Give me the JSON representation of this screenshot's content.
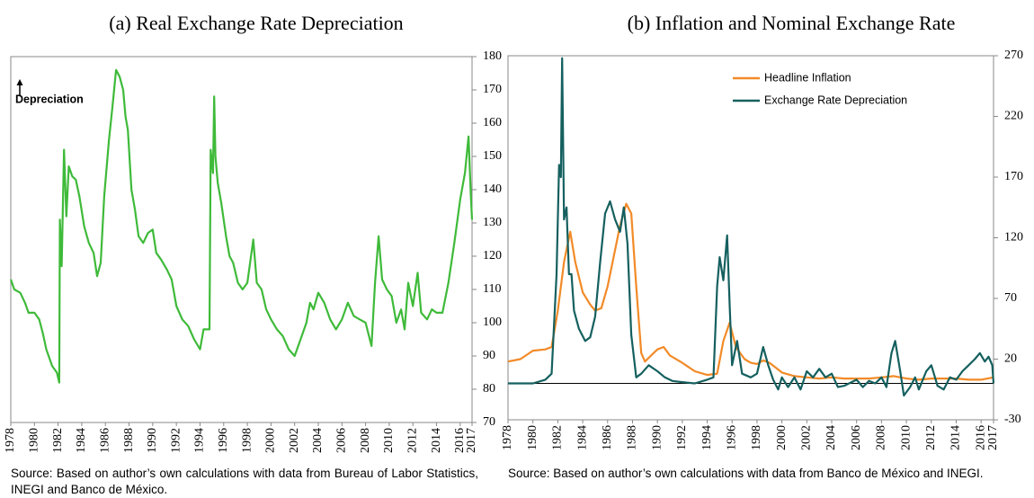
{
  "chart_data": [
    {
      "type": "line",
      "title": "(a) Real Exchange Rate Depreciation",
      "annotation": "Depreciation",
      "note": "Source: Based on author’s own calculations with data from Bureau of Labor Statistics, INEGI and Banco de México.",
      "color": "#3fba3a",
      "x": [
        1978.0,
        1978.3,
        1978.8,
        1979.2,
        1979.5,
        1980.0,
        1980.4,
        1980.7,
        1981.0,
        1981.5,
        1981.9,
        1982.1,
        1982.15,
        1982.3,
        1982.5,
        1982.7,
        1982.9,
        1983.2,
        1983.5,
        1983.8,
        1984.2,
        1984.6,
        1985.0,
        1985.3,
        1985.6,
        1985.9,
        1986.3,
        1986.6,
        1986.9,
        1987.2,
        1987.5,
        1987.7,
        1987.9,
        1988.2,
        1988.5,
        1988.8,
        1989.2,
        1989.6,
        1990.0,
        1990.3,
        1990.7,
        1991.2,
        1991.6,
        1992.0,
        1992.5,
        1993.0,
        1993.5,
        1994.0,
        1994.3,
        1994.8,
        1994.9,
        1995.1,
        1995.2,
        1995.3,
        1995.5,
        1995.8,
        1996.2,
        1996.5,
        1996.8,
        1997.2,
        1997.6,
        1998.0,
        1998.5,
        1998.8,
        1999.2,
        1999.6,
        2000.0,
        2000.5,
        2001.0,
        2001.5,
        2002.0,
        2002.5,
        2003.0,
        2003.3,
        2003.6,
        2004.0,
        2004.5,
        2005.0,
        2005.5,
        2006.0,
        2006.5,
        2007.0,
        2007.5,
        2008.0,
        2008.5,
        2008.8,
        2009.1,
        2009.4,
        2009.8,
        2010.2,
        2010.6,
        2011.0,
        2011.3,
        2011.6,
        2012.0,
        2012.4,
        2012.7,
        2013.2,
        2013.6,
        2014.0,
        2014.5,
        2015.0,
        2015.5,
        2016.0,
        2016.4,
        2016.7,
        2016.9,
        2017.0
      ],
      "values": [
        113,
        110,
        109,
        106,
        103,
        103,
        101,
        97,
        92,
        87,
        85,
        82,
        131,
        117,
        152,
        132,
        147,
        144,
        143,
        138,
        129,
        124,
        121,
        114,
        118,
        138,
        155,
        165,
        176,
        174,
        170,
        162,
        158,
        140,
        134,
        126,
        124,
        127,
        128,
        121,
        119,
        116,
        113,
        105,
        101,
        99,
        95,
        92,
        98,
        98,
        152,
        145,
        168,
        150,
        142,
        136,
        126,
        120,
        118,
        112,
        110,
        112,
        125,
        112,
        110,
        104,
        101,
        98,
        96,
        92,
        90,
        95,
        100,
        106,
        104,
        109,
        106,
        101,
        98,
        101,
        106,
        102,
        101,
        100,
        93,
        112,
        126,
        113,
        110,
        108,
        100,
        104,
        98,
        112,
        105,
        115,
        103,
        101,
        104,
        103,
        103,
        112,
        124,
        137,
        145,
        156,
        138,
        131
      ],
      "xlim": [
        1978,
        2017
      ],
      "xticks": [
        1978,
        1980,
        1982,
        1984,
        1986,
        1988,
        1990,
        1992,
        1994,
        1996,
        1998,
        2000,
        2002,
        2004,
        2006,
        2008,
        2010,
        2012,
        2014,
        2016,
        2017
      ],
      "ylim": [
        70,
        180
      ],
      "yticks": [
        70,
        80,
        90,
        100,
        110,
        120,
        130,
        140,
        150,
        160,
        170,
        180
      ]
    },
    {
      "type": "line",
      "title": "(b) Inflation and Nominal Exchange Rate",
      "note": "Source: Based on author’s own calculations with data from Banco de México and INEGI.",
      "legend": "top",
      "series": [
        {
          "name": "Headline Inflation",
          "color": "#f28a27",
          "x": [
            1978,
            1979,
            1980,
            1981,
            1981.5,
            1982,
            1982.5,
            1983,
            1983.4,
            1984,
            1984.6,
            1985,
            1985.5,
            1986,
            1986.5,
            1987,
            1987.5,
            1987.9,
            1988.3,
            1988.7,
            1989,
            1989.5,
            1990,
            1990.5,
            1991,
            1992,
            1993,
            1994,
            1994.8,
            1995.3,
            1995.8,
            1996.3,
            1997,
            1997.5,
            1998,
            1998.5,
            1999,
            1999.5,
            2000,
            2001,
            2002,
            2003,
            2004,
            2005,
            2006,
            2007,
            2008,
            2009,
            2010,
            2011,
            2012,
            2013,
            2014,
            2015,
            2016,
            2017
          ],
          "values": [
            18,
            20,
            27,
            28,
            30,
            60,
            100,
            125,
            100,
            75,
            65,
            60,
            62,
            80,
            105,
            130,
            148,
            140,
            80,
            25,
            18,
            23,
            28,
            30,
            23,
            17,
            10,
            7,
            8,
            35,
            50,
            30,
            20,
            17,
            16,
            19,
            17,
            13,
            9,
            6,
            5,
            4,
            5,
            4,
            4,
            4,
            5,
            6,
            4,
            3,
            4,
            4,
            4,
            3,
            3,
            5
          ]
        },
        {
          "name": "Exchange Rate Depreciation",
          "color": "#15605f",
          "x": [
            1978,
            1980,
            1981,
            1981.5,
            1981.9,
            1982.1,
            1982.25,
            1982.35,
            1982.5,
            1982.7,
            1982.9,
            1983.1,
            1983.3,
            1983.7,
            1984.2,
            1984.6,
            1985,
            1985.4,
            1985.8,
            1986.2,
            1986.6,
            1987,
            1987.3,
            1987.6,
            1987.9,
            1988.3,
            1988.7,
            1989.3,
            1990,
            1990.6,
            1991.2,
            1992,
            1993,
            1994,
            1994.5,
            1994.8,
            1995,
            1995.3,
            1995.6,
            1995.8,
            1996,
            1996.4,
            1996.8,
            1997.5,
            1998,
            1998.5,
            1998.9,
            1999.3,
            1999.7,
            2000,
            2000.5,
            2001,
            2001.5,
            2002,
            2002.5,
            2003,
            2003.5,
            2004,
            2004.5,
            2005,
            2006,
            2006.5,
            2007,
            2007.5,
            2008,
            2008.4,
            2008.8,
            2009.1,
            2009.5,
            2009.8,
            2010.3,
            2010.7,
            2011,
            2011.6,
            2012,
            2012.5,
            2013,
            2013.5,
            2014,
            2014.5,
            2015,
            2015.5,
            2015.9,
            2016.3,
            2016.6,
            2016.9,
            2017
          ],
          "values": [
            0,
            0,
            3,
            8,
            90,
            180,
            170,
            268,
            135,
            145,
            90,
            90,
            60,
            45,
            35,
            38,
            55,
            100,
            140,
            150,
            135,
            125,
            145,
            115,
            40,
            5,
            8,
            15,
            10,
            5,
            2,
            1,
            0,
            3,
            5,
            80,
            104,
            85,
            122,
            65,
            15,
            35,
            8,
            5,
            8,
            30,
            15,
            3,
            -5,
            5,
            -3,
            5,
            -5,
            10,
            5,
            12,
            5,
            8,
            -3,
            -2,
            3,
            -3,
            2,
            0,
            5,
            -3,
            25,
            35,
            10,
            -10,
            -3,
            5,
            -5,
            10,
            15,
            -2,
            -5,
            5,
            3,
            10,
            15,
            20,
            25,
            18,
            22,
            15,
            0
          ]
        }
      ],
      "xlim": [
        1978,
        2017
      ],
      "xticks": [
        1978,
        1980,
        1982,
        1984,
        1986,
        1988,
        1990,
        1992,
        1994,
        1996,
        1998,
        2000,
        2002,
        2004,
        2006,
        2008,
        2010,
        2012,
        2014,
        2016,
        2017
      ],
      "ylim": [
        -30,
        270
      ],
      "yticks": [
        -30,
        20,
        70,
        120,
        170,
        220,
        270
      ]
    }
  ]
}
